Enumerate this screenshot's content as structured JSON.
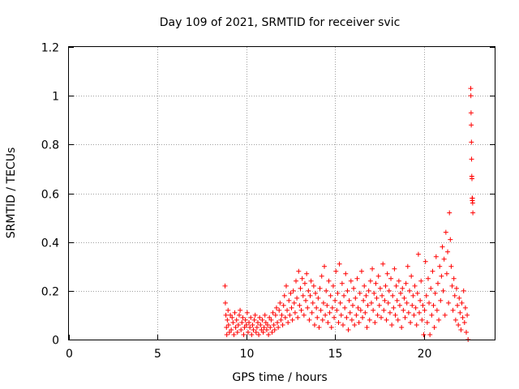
{
  "chart_data": {
    "type": "scatter",
    "title": "Day 109 of 2021, SRMTID for receiver svic",
    "xlabel": "GPS time / hours",
    "ylabel": "SRMTID / TECUs",
    "xlim": [
      0,
      24
    ],
    "ylim": [
      0,
      1.2
    ],
    "xticks": [
      0,
      5,
      10,
      15,
      20
    ],
    "xtick_labels": [
      "0",
      "5",
      "10",
      "15",
      "20"
    ],
    "yticks": [
      0,
      0.2,
      0.4,
      0.6,
      0.8,
      1.0,
      1.2
    ],
    "ytick_labels": [
      "0",
      "0.2",
      "0.4",
      "0.6",
      "0.8",
      "1",
      "1.2"
    ],
    "grid": true,
    "marker": "+",
    "series": [
      {
        "name": "SRMTID",
        "color": "#ff0000",
        "x": [
          8.8,
          8.82,
          8.85,
          8.88,
          8.9,
          8.93,
          8.97,
          9.0,
          9.05,
          9.1,
          9.15,
          9.2,
          9.25,
          9.3,
          9.35,
          9.4,
          9.45,
          9.5,
          9.55,
          9.6,
          9.65,
          9.7,
          9.75,
          9.8,
          9.85,
          9.9,
          9.95,
          10.0,
          10.05,
          10.1,
          10.15,
          10.2,
          10.25,
          10.3,
          10.35,
          10.4,
          10.45,
          10.5,
          10.55,
          10.6,
          10.65,
          10.7,
          10.75,
          10.8,
          10.85,
          10.9,
          10.95,
          11.0,
          11.05,
          11.1,
          11.15,
          11.2,
          11.25,
          11.3,
          11.35,
          11.4,
          11.45,
          11.5,
          11.55,
          11.6,
          11.65,
          11.7,
          11.75,
          11.8,
          11.85,
          11.9,
          11.95,
          12.0,
          12.05,
          12.1,
          12.15,
          12.2,
          12.25,
          12.3,
          12.35,
          12.4,
          12.45,
          12.5,
          12.55,
          12.6,
          12.65,
          12.7,
          12.75,
          12.8,
          12.85,
          12.9,
          12.95,
          13.0,
          13.05,
          13.1,
          13.15,
          13.2,
          13.25,
          13.3,
          13.35,
          13.4,
          13.45,
          13.5,
          13.55,
          13.6,
          13.65,
          13.7,
          13.75,
          13.8,
          13.85,
          13.9,
          13.95,
          14.0,
          14.05,
          14.1,
          14.15,
          14.2,
          14.25,
          14.3,
          14.35,
          14.4,
          14.45,
          14.5,
          14.55,
          14.6,
          14.65,
          14.7,
          14.75,
          14.8,
          14.85,
          14.9,
          14.95,
          15.0,
          15.05,
          15.1,
          15.15,
          15.2,
          15.25,
          15.3,
          15.35,
          15.4,
          15.45,
          15.5,
          15.55,
          15.6,
          15.65,
          15.7,
          15.75,
          15.8,
          15.85,
          15.9,
          15.95,
          16.0,
          16.05,
          16.1,
          16.15,
          16.2,
          16.25,
          16.3,
          16.35,
          16.4,
          16.45,
          16.5,
          16.55,
          16.6,
          16.65,
          16.7,
          16.75,
          16.8,
          16.85,
          16.9,
          16.95,
          17.0,
          17.05,
          17.1,
          17.15,
          17.2,
          17.25,
          17.3,
          17.35,
          17.4,
          17.45,
          17.5,
          17.55,
          17.6,
          17.65,
          17.7,
          17.75,
          17.8,
          17.85,
          17.9,
          17.95,
          18.0,
          18.05,
          18.1,
          18.15,
          18.2,
          18.25,
          18.3,
          18.35,
          18.4,
          18.45,
          18.5,
          18.55,
          18.6,
          18.65,
          18.7,
          18.75,
          18.8,
          18.85,
          18.9,
          18.95,
          19.0,
          19.05,
          19.1,
          19.15,
          19.2,
          19.25,
          19.3,
          19.35,
          19.4,
          19.45,
          19.5,
          19.55,
          19.6,
          19.65,
          19.7,
          19.75,
          19.8,
          19.85,
          19.9,
          19.95,
          20.0,
          20.05,
          20.1,
          20.15,
          20.2,
          20.25,
          20.3,
          20.35,
          20.4,
          20.45,
          20.5,
          20.55,
          20.6,
          20.65,
          20.7,
          20.75,
          20.8,
          20.85,
          20.9,
          20.95,
          21.0,
          21.05,
          21.1,
          21.15,
          21.2,
          21.25,
          21.3,
          21.35,
          21.4,
          21.45,
          21.5,
          21.55,
          21.6,
          21.65,
          21.7,
          21.75,
          21.8,
          21.85,
          21.9,
          21.95,
          22.0,
          22.05,
          22.1,
          22.15,
          22.2,
          22.25,
          22.3,
          22.35,
          22.4,
          22.45,
          22.5,
          22.65,
          22.66,
          22.67,
          22.68,
          22.69,
          22.7,
          22.71,
          22.72,
          22.73,
          22.74,
          22.75,
          22.76,
          22.77
        ],
        "y": [
          0.22,
          0.15,
          0.1,
          0.05,
          0.02,
          0.08,
          0.12,
          0.06,
          0.03,
          0.1,
          0.04,
          0.09,
          0.07,
          0.02,
          0.11,
          0.05,
          0.08,
          0.03,
          0.06,
          0.1,
          0.12,
          0.04,
          0.07,
          0.09,
          0.02,
          0.05,
          0.08,
          0.06,
          0.11,
          0.03,
          0.07,
          0.05,
          0.09,
          0.02,
          0.06,
          0.04,
          0.08,
          0.1,
          0.03,
          0.05,
          0.07,
          0.02,
          0.09,
          0.06,
          0.04,
          0.08,
          0.03,
          0.05,
          0.1,
          0.07,
          0.04,
          0.06,
          0.02,
          0.09,
          0.05,
          0.08,
          0.03,
          0.11,
          0.06,
          0.04,
          0.1,
          0.13,
          0.07,
          0.05,
          0.12,
          0.15,
          0.08,
          0.1,
          0.06,
          0.14,
          0.18,
          0.09,
          0.22,
          0.12,
          0.07,
          0.16,
          0.1,
          0.19,
          0.13,
          0.08,
          0.2,
          0.15,
          0.11,
          0.24,
          0.17,
          0.09,
          0.28,
          0.14,
          0.21,
          0.12,
          0.25,
          0.18,
          0.1,
          0.23,
          0.16,
          0.27,
          0.13,
          0.2,
          0.08,
          0.18,
          0.24,
          0.11,
          0.15,
          0.22,
          0.06,
          0.19,
          0.13,
          0.09,
          0.17,
          0.05,
          0.21,
          0.12,
          0.26,
          0.08,
          0.15,
          0.3,
          0.1,
          0.2,
          0.14,
          0.07,
          0.24,
          0.11,
          0.18,
          0.05,
          0.13,
          0.22,
          0.09,
          0.16,
          0.28,
          0.12,
          0.19,
          0.07,
          0.31,
          0.15,
          0.1,
          0.23,
          0.06,
          0.18,
          0.13,
          0.27,
          0.09,
          0.2,
          0.04,
          0.16,
          0.11,
          0.24,
          0.08,
          0.14,
          0.21,
          0.06,
          0.17,
          0.1,
          0.25,
          0.13,
          0.07,
          0.19,
          0.12,
          0.28,
          0.09,
          0.16,
          0.22,
          0.11,
          0.18,
          0.05,
          0.14,
          0.2,
          0.08,
          0.24,
          0.15,
          0.29,
          0.12,
          0.19,
          0.07,
          0.23,
          0.17,
          0.1,
          0.26,
          0.14,
          0.21,
          0.09,
          0.18,
          0.31,
          0.12,
          0.16,
          0.22,
          0.08,
          0.27,
          0.15,
          0.2,
          0.11,
          0.25,
          0.06,
          0.18,
          0.13,
          0.29,
          0.1,
          0.22,
          0.16,
          0.08,
          0.24,
          0.14,
          0.19,
          0.05,
          0.21,
          0.12,
          0.17,
          0.09,
          0.23,
          0.15,
          0.3,
          0.11,
          0.2,
          0.07,
          0.26,
          0.14,
          0.18,
          0.1,
          0.22,
          0.13,
          0.06,
          0.19,
          0.35,
          0.11,
          0.16,
          0.24,
          0.08,
          0.14,
          0.02,
          0.12,
          0.32,
          0.18,
          0.07,
          0.25,
          0.15,
          0.02,
          0.21,
          0.1,
          0.28,
          0.14,
          0.05,
          0.19,
          0.34,
          0.12,
          0.23,
          0.08,
          0.3,
          0.16,
          0.26,
          0.38,
          0.2,
          0.33,
          0.1,
          0.44,
          0.27,
          0.36,
          0.15,
          0.52,
          0.41,
          0.3,
          0.22,
          0.12,
          0.25,
          0.18,
          0.08,
          0.21,
          0.14,
          0.06,
          0.17,
          0.11,
          0.04,
          0.15,
          0.09,
          0.2,
          0.07,
          0.13,
          0.03,
          0.1,
          0.0,
          1.03,
          1.0,
          0.93,
          0.88,
          0.81,
          0.74,
          0.67,
          0.66,
          0.58,
          0.57,
          0.58,
          0.56,
          0.52
        ]
      }
    ]
  }
}
